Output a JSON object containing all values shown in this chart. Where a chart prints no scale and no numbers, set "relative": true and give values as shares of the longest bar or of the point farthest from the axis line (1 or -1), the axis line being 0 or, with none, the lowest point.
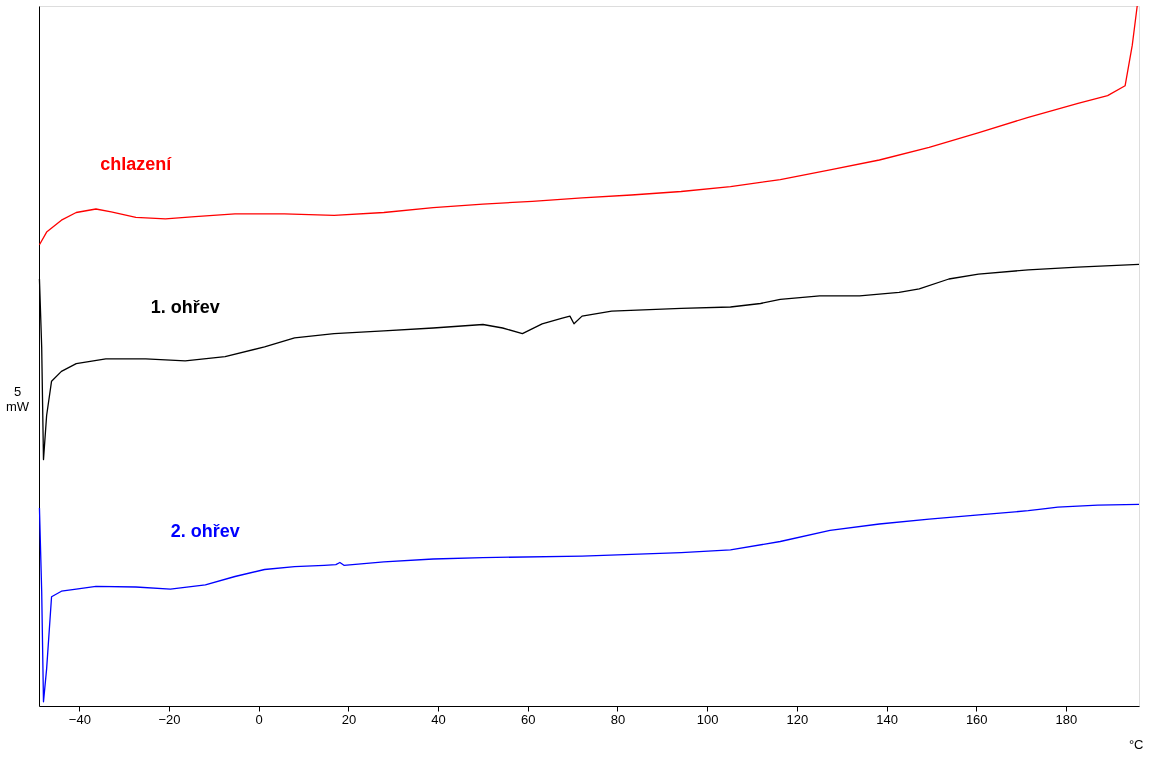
{
  "chart_data": {
    "type": "line",
    "relative": true,
    "xlabel": "°C",
    "ylabel": "5 mW",
    "xlim": [
      -49,
      196.3
    ],
    "xticks": [
      -40,
      -20,
      0,
      20,
      40,
      60,
      80,
      100,
      120,
      140,
      160,
      180
    ],
    "grid": false,
    "legend": false,
    "tick_labels": "x",
    "marker": "none",
    "line_style": "solid",
    "series": [
      {
        "name": "chlazení",
        "color": "#ff0000",
        "x": [
          -48.9,
          -47.3,
          -44.0,
          -40.7,
          -36.3,
          -32.9,
          -27.4,
          -20.8,
          -14.2,
          -5.3,
          5.7,
          16.8,
          27.9,
          38.9,
          50.0,
          61.0,
          72.1,
          83.1,
          94.2,
          105.2,
          116.3,
          127.4,
          138.4,
          149.5,
          160.6,
          171.6,
          182.7,
          189.3,
          193.2,
          194.8,
          195.9
        ],
        "values": [
          0.659,
          0.677,
          0.694,
          0.705,
          0.71,
          0.706,
          0.698,
          0.696,
          0.699,
          0.703,
          0.703,
          0.701,
          0.705,
          0.712,
          0.717,
          0.721,
          0.726,
          0.73,
          0.735,
          0.742,
          0.752,
          0.766,
          0.78,
          0.798,
          0.819,
          0.841,
          0.861,
          0.872,
          0.886,
          0.944,
          1
        ]
      },
      {
        "name": "1. ohřev",
        "color": "#000000",
        "x": [
          -48.9,
          -48.4,
          -48.0,
          -47.3,
          -46.2,
          -44.0,
          -40.7,
          -34.1,
          -25.2,
          -16.4,
          -7.5,
          1.3,
          8.0,
          16.8,
          27.9,
          38.9,
          50.0,
          54.4,
          58.8,
          63.2,
          67.7,
          69.4,
          70.3,
          72.1,
          78.7,
          94.2,
          105.2,
          111.9,
          116.3,
          125.1,
          134.0,
          142.8,
          147.3,
          153.9,
          160.5,
          171.6,
          182.6,
          196.3
        ],
        "values": [
          0.61,
          0.513,
          0.352,
          0.415,
          0.464,
          0.478,
          0.489,
          0.496,
          0.496,
          0.493,
          0.499,
          0.513,
          0.526,
          0.532,
          0.536,
          0.54,
          0.545,
          0.54,
          0.532,
          0.546,
          0.554,
          0.557,
          0.546,
          0.557,
          0.564,
          0.568,
          0.57,
          0.575,
          0.581,
          0.586,
          0.586,
          0.591,
          0.596,
          0.61,
          0.617,
          0.623,
          0.627,
          0.631
        ]
      },
      {
        "name": "2. ohřev",
        "color": "#0000ff",
        "x": [
          -48.9,
          -48.4,
          -48.0,
          -47.3,
          -46.2,
          -44.0,
          -40.7,
          -36.3,
          -27.4,
          -19.7,
          -11.9,
          -5.3,
          1.3,
          8.0,
          14.6,
          17.2,
          18.1,
          19.0,
          27.9,
          38.9,
          50.0,
          72.1,
          94.2,
          105.2,
          116.3,
          127.4,
          138.4,
          149.5,
          160.6,
          171.6,
          178.2,
          187.1,
          196.3
        ],
        "values": [
          0.283,
          0.164,
          0.006,
          0.053,
          0.156,
          0.164,
          0.167,
          0.171,
          0.17,
          0.167,
          0.173,
          0.185,
          0.195,
          0.199,
          0.201,
          0.202,
          0.205,
          0.201,
          0.206,
          0.21,
          0.212,
          0.214,
          0.219,
          0.223,
          0.235,
          0.251,
          0.26,
          0.267,
          0.273,
          0.279,
          0.284,
          0.287,
          0.288
        ]
      }
    ]
  }
}
